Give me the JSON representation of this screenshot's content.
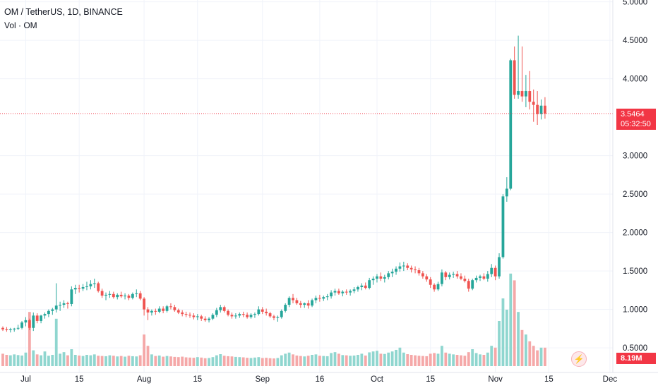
{
  "legend": {
    "title": "OM / TetherUS, 1D, BINANCE",
    "volume": "Vol · OM"
  },
  "price_scale": {
    "current_price": "3.5464",
    "countdown": "05:32:50",
    "volume_value": "8.19M",
    "tick_labels": [
      "5.0000",
      "4.5000",
      "4.0000",
      "3.0000",
      "2.5000",
      "2.0000",
      "1.5000",
      "1.0000",
      "0.5000"
    ]
  },
  "colors": {
    "up": "#26a69a",
    "down": "#ef5350",
    "up_volume": "#8fd6cf",
    "down_volume": "#f5a8a8",
    "price_line": "#f23645",
    "grid": "#f0f3fa"
  },
  "icons": {
    "flash_button": "lightning-icon"
  },
  "chart_data": {
    "type": "candlestick",
    "symbol": "OM / TetherUS",
    "interval": "1D",
    "exchange": "BINANCE",
    "x_tick_labels": [
      "Jul",
      "15",
      "Aug",
      "15",
      "Sep",
      "16",
      "Oct",
      "15",
      "Nov",
      "15",
      "Dec"
    ],
    "x_tick_dates": [
      "2024-07-01",
      "2024-07-15",
      "2024-08-01",
      "2024-08-15",
      "2024-09-01",
      "2024-09-16",
      "2024-10-01",
      "2024-10-15",
      "2024-11-01",
      "2024-11-15",
      "2024-12-01"
    ],
    "y_tick_values": [
      5.0,
      4.5,
      4.0,
      3.0,
      2.5,
      2.0,
      1.5,
      1.0,
      0.5
    ],
    "ylim": [
      0.3,
      5.0
    ],
    "last_price": 3.5464,
    "date_start": "2024-06-25",
    "ohlc": [
      [
        0.76,
        0.78,
        0.72,
        0.74
      ],
      [
        0.74,
        0.77,
        0.71,
        0.73
      ],
      [
        0.73,
        0.76,
        0.7,
        0.74
      ],
      [
        0.74,
        0.76,
        0.71,
        0.75
      ],
      [
        0.75,
        0.8,
        0.73,
        0.76
      ],
      [
        0.76,
        0.85,
        0.74,
        0.83
      ],
      [
        0.83,
        0.9,
        0.78,
        0.86
      ],
      [
        0.86,
        0.88,
        0.73,
        0.76
      ],
      [
        0.76,
        0.96,
        0.72,
        0.92
      ],
      [
        0.92,
        0.95,
        0.82,
        0.85
      ],
      [
        0.85,
        0.93,
        0.82,
        0.92
      ],
      [
        0.92,
        0.96,
        0.88,
        0.94
      ],
      [
        0.94,
        1.0,
        0.9,
        0.98
      ],
      [
        0.98,
        1.02,
        0.93,
        1.0
      ],
      [
        1.0,
        1.34,
        0.96,
        1.05
      ],
      [
        1.05,
        1.1,
        0.98,
        1.06
      ],
      [
        1.06,
        1.12,
        1.02,
        1.08
      ],
      [
        1.08,
        1.1,
        1.01,
        1.07
      ],
      [
        1.07,
        1.3,
        1.04,
        1.26
      ],
      [
        1.26,
        1.32,
        1.2,
        1.28
      ],
      [
        1.28,
        1.32,
        1.22,
        1.27
      ],
      [
        1.27,
        1.33,
        1.24,
        1.29
      ],
      [
        1.29,
        1.36,
        1.25,
        1.3
      ],
      [
        1.3,
        1.38,
        1.26,
        1.33
      ],
      [
        1.33,
        1.4,
        1.28,
        1.34
      ],
      [
        1.34,
        1.36,
        1.22,
        1.24
      ],
      [
        1.24,
        1.27,
        1.15,
        1.18
      ],
      [
        1.18,
        1.22,
        1.12,
        1.19
      ],
      [
        1.19,
        1.24,
        1.15,
        1.2
      ],
      [
        1.2,
        1.23,
        1.14,
        1.16
      ],
      [
        1.16,
        1.21,
        1.13,
        1.19
      ],
      [
        1.19,
        1.23,
        1.15,
        1.17
      ],
      [
        1.17,
        1.21,
        1.13,
        1.18
      ],
      [
        1.18,
        1.2,
        1.12,
        1.15
      ],
      [
        1.15,
        1.22,
        1.13,
        1.2
      ],
      [
        1.2,
        1.26,
        1.16,
        1.21
      ],
      [
        1.21,
        1.24,
        1.12,
        1.14
      ],
      [
        1.14,
        1.16,
        0.92,
        1.0
      ],
      [
        1.0,
        1.03,
        0.86,
        0.96
      ],
      [
        0.96,
        1.0,
        0.92,
        0.98
      ],
      [
        0.98,
        1.01,
        0.93,
        0.97
      ],
      [
        0.97,
        1.04,
        0.95,
        1.01
      ],
      [
        1.01,
        1.04,
        0.95,
        0.98
      ],
      [
        0.98,
        1.06,
        0.96,
        1.04
      ],
      [
        1.04,
        1.08,
        1.0,
        1.03
      ],
      [
        1.03,
        1.06,
        0.97,
        0.99
      ],
      [
        0.99,
        1.01,
        0.94,
        0.96
      ],
      [
        0.96,
        0.99,
        0.91,
        0.94
      ],
      [
        0.94,
        0.97,
        0.9,
        0.93
      ],
      [
        0.93,
        0.96,
        0.89,
        0.92
      ],
      [
        0.92,
        0.95,
        0.87,
        0.9
      ],
      [
        0.9,
        0.94,
        0.86,
        0.91
      ],
      [
        0.91,
        0.93,
        0.85,
        0.88
      ],
      [
        0.88,
        0.91,
        0.84,
        0.86
      ],
      [
        0.86,
        0.9,
        0.83,
        0.88
      ],
      [
        0.88,
        0.95,
        0.86,
        0.93
      ],
      [
        0.93,
        1.02,
        0.9,
        0.99
      ],
      [
        0.99,
        1.06,
        0.96,
        1.03
      ],
      [
        1.03,
        1.05,
        0.96,
        0.98
      ],
      [
        0.98,
        1.0,
        0.91,
        0.93
      ],
      [
        0.93,
        0.96,
        0.88,
        0.91
      ],
      [
        0.91,
        0.95,
        0.88,
        0.92
      ],
      [
        0.92,
        0.96,
        0.89,
        0.94
      ],
      [
        0.94,
        0.97,
        0.9,
        0.93
      ],
      [
        0.93,
        0.96,
        0.88,
        0.9
      ],
      [
        0.9,
        0.95,
        0.88,
        0.93
      ],
      [
        0.93,
        0.96,
        0.89,
        0.94
      ],
      [
        0.94,
        1.04,
        0.92,
        1.0
      ],
      [
        1.0,
        1.03,
        0.94,
        0.97
      ],
      [
        0.97,
        1.01,
        0.92,
        0.95
      ],
      [
        0.95,
        0.97,
        0.89,
        0.91
      ],
      [
        0.91,
        0.93,
        0.86,
        0.89
      ],
      [
        0.89,
        0.92,
        0.84,
        0.9
      ],
      [
        0.9,
        1.0,
        0.88,
        0.98
      ],
      [
        0.98,
        1.08,
        0.96,
        1.06
      ],
      [
        1.06,
        1.17,
        1.03,
        1.15
      ],
      [
        1.15,
        1.2,
        1.08,
        1.12
      ],
      [
        1.12,
        1.15,
        1.06,
        1.08
      ],
      [
        1.08,
        1.11,
        1.02,
        1.06
      ],
      [
        1.06,
        1.09,
        1.02,
        1.08
      ],
      [
        1.08,
        1.12,
        1.01,
        1.05
      ],
      [
        1.05,
        1.14,
        1.03,
        1.12
      ],
      [
        1.12,
        1.18,
        1.08,
        1.15
      ],
      [
        1.15,
        1.19,
        1.1,
        1.14
      ],
      [
        1.14,
        1.18,
        1.11,
        1.16
      ],
      [
        1.16,
        1.2,
        1.12,
        1.17
      ],
      [
        1.17,
        1.25,
        1.14,
        1.22
      ],
      [
        1.22,
        1.27,
        1.18,
        1.24
      ],
      [
        1.24,
        1.27,
        1.19,
        1.21
      ],
      [
        1.21,
        1.25,
        1.17,
        1.23
      ],
      [
        1.23,
        1.26,
        1.19,
        1.22
      ],
      [
        1.22,
        1.26,
        1.18,
        1.24
      ],
      [
        1.24,
        1.29,
        1.21,
        1.26
      ],
      [
        1.26,
        1.31,
        1.23,
        1.29
      ],
      [
        1.29,
        1.34,
        1.25,
        1.31
      ],
      [
        1.31,
        1.35,
        1.26,
        1.28
      ],
      [
        1.28,
        1.41,
        1.26,
        1.38
      ],
      [
        1.38,
        1.43,
        1.32,
        1.4
      ],
      [
        1.4,
        1.46,
        1.35,
        1.43
      ],
      [
        1.43,
        1.48,
        1.37,
        1.4
      ],
      [
        1.4,
        1.45,
        1.35,
        1.42
      ],
      [
        1.42,
        1.5,
        1.39,
        1.47
      ],
      [
        1.47,
        1.53,
        1.42,
        1.49
      ],
      [
        1.49,
        1.56,
        1.45,
        1.53
      ],
      [
        1.53,
        1.61,
        1.49,
        1.56
      ],
      [
        1.56,
        1.62,
        1.5,
        1.57
      ],
      [
        1.57,
        1.6,
        1.51,
        1.54
      ],
      [
        1.54,
        1.57,
        1.48,
        1.52
      ],
      [
        1.52,
        1.56,
        1.47,
        1.51
      ],
      [
        1.51,
        1.54,
        1.44,
        1.47
      ],
      [
        1.47,
        1.5,
        1.4,
        1.43
      ],
      [
        1.43,
        1.46,
        1.36,
        1.39
      ],
      [
        1.39,
        1.42,
        1.28,
        1.32
      ],
      [
        1.32,
        1.34,
        1.23,
        1.26
      ],
      [
        1.26,
        1.36,
        1.24,
        1.33
      ],
      [
        1.33,
        1.52,
        1.3,
        1.48
      ],
      [
        1.48,
        1.5,
        1.38,
        1.42
      ],
      [
        1.42,
        1.48,
        1.39,
        1.45
      ],
      [
        1.45,
        1.49,
        1.41,
        1.46
      ],
      [
        1.46,
        1.5,
        1.4,
        1.43
      ],
      [
        1.43,
        1.47,
        1.38,
        1.4
      ],
      [
        1.4,
        1.44,
        1.35,
        1.37
      ],
      [
        1.37,
        1.4,
        1.23,
        1.27
      ],
      [
        1.27,
        1.4,
        1.25,
        1.38
      ],
      [
        1.38,
        1.44,
        1.35,
        1.41
      ],
      [
        1.41,
        1.45,
        1.37,
        1.43
      ],
      [
        1.43,
        1.47,
        1.38,
        1.4
      ],
      [
        1.4,
        1.5,
        1.36,
        1.46
      ],
      [
        1.46,
        1.59,
        1.42,
        1.54
      ],
      [
        1.54,
        1.57,
        1.38,
        1.43
      ],
      [
        1.43,
        1.73,
        1.4,
        1.68
      ],
      [
        1.68,
        2.5,
        1.66,
        2.47
      ],
      [
        2.47,
        2.72,
        2.4,
        2.57
      ],
      [
        2.57,
        4.26,
        2.55,
        4.24
      ],
      [
        4.24,
        4.42,
        3.74,
        3.79
      ],
      [
        3.79,
        4.56,
        3.74,
        3.84
      ],
      [
        3.84,
        4.42,
        3.7,
        3.77
      ],
      [
        3.77,
        4.05,
        3.63,
        3.84
      ],
      [
        3.84,
        4.1,
        3.6,
        3.7
      ],
      [
        3.7,
        3.86,
        3.44,
        3.66
      ],
      [
        3.66,
        3.84,
        3.4,
        3.54
      ],
      [
        3.54,
        3.73,
        3.47,
        3.65
      ],
      [
        3.65,
        3.76,
        3.48,
        3.5464
      ]
    ],
    "volume_millions": [
      5.5,
      5.0,
      4.8,
      5.2,
      4.9,
      4.7,
      6.0,
      24.0,
      7.0,
      5.2,
      4.8,
      6.5,
      4.6,
      5.0,
      21.0,
      5.5,
      6.2,
      4.8,
      7.5,
      5.0,
      4.7,
      4.5,
      5.0,
      4.8,
      5.2,
      4.6,
      4.5,
      4.4,
      4.8,
      4.6,
      4.3,
      4.5,
      4.2,
      4.6,
      4.4,
      4.3,
      4.8,
      14.0,
      9.0,
      5.2,
      4.5,
      4.7,
      4.2,
      4.5,
      4.3,
      4.1,
      4.0,
      4.2,
      3.9,
      3.8,
      3.7,
      4.0,
      3.8,
      3.5,
      3.6,
      4.0,
      4.8,
      5.3,
      4.6,
      4.4,
      4.3,
      4.1,
      4.0,
      3.9,
      3.7,
      3.6,
      3.8,
      4.0,
      3.6,
      3.7,
      3.5,
      3.4,
      3.6,
      4.8,
      5.5,
      6.0,
      5.2,
      4.7,
      4.5,
      4.3,
      4.6,
      5.0,
      5.2,
      4.6,
      4.5,
      4.4,
      5.8,
      6.2,
      5.5,
      4.9,
      4.8,
      4.6,
      4.7,
      5.0,
      5.5,
      4.7,
      6.1,
      6.5,
      6.8,
      5.5,
      5.4,
      6.0,
      6.5,
      7.2,
      8.2,
      6.0,
      5.3,
      5.0,
      4.8,
      4.6,
      4.5,
      4.4,
      5.5,
      5.8,
      5.5,
      9.0,
      6.0,
      5.5,
      5.2,
      5.0,
      4.8,
      4.6,
      6.2,
      7.5,
      5.8,
      5.2,
      5.0,
      6.0,
      9.0,
      8.2,
      20.0,
      30.0,
      25.0,
      41.0,
      38.0,
      24.0,
      16.0,
      14.0,
      11.0,
      9.0,
      7.0,
      8.19,
      8.19
    ]
  }
}
